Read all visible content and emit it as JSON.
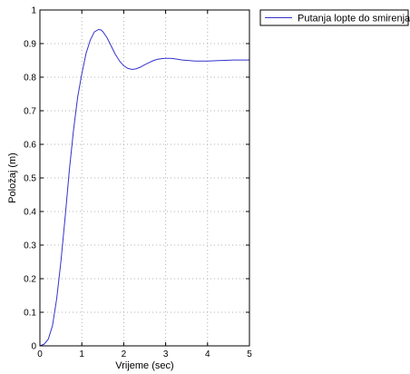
{
  "chart_data": {
    "type": "line",
    "title": "",
    "xlabel": "Vrijeme (sec)",
    "ylabel": "Položaj (m)",
    "xlim": [
      0,
      5
    ],
    "ylim": [
      0,
      1
    ],
    "xticks": [
      0,
      1,
      2,
      3,
      4,
      5
    ],
    "yticks": [
      0,
      0.1,
      0.2,
      0.3,
      0.4,
      0.5,
      0.6,
      0.7,
      0.8,
      0.9,
      1
    ],
    "xtick_labels": [
      "0",
      "1",
      "2",
      "3",
      "4",
      "5"
    ],
    "ytick_labels": [
      "0",
      "0.1",
      "0.2",
      "0.3",
      "0.4",
      "0.5",
      "0.6",
      "0.7",
      "0.8",
      "0.9",
      "1"
    ],
    "grid": true,
    "legend_position": "outside-top-right",
    "series": [
      {
        "name": "Putanja lopte do smirenja",
        "color": "#3333cc",
        "x": [
          0,
          0.1,
          0.2,
          0.3,
          0.4,
          0.5,
          0.6,
          0.7,
          0.8,
          0.9,
          1.0,
          1.1,
          1.2,
          1.3,
          1.4,
          1.45,
          1.5,
          1.6,
          1.7,
          1.8,
          1.9,
          2.0,
          2.1,
          2.2,
          2.3,
          2.4,
          2.5,
          2.6,
          2.7,
          2.8,
          2.9,
          3.0,
          3.1,
          3.2,
          3.3,
          3.4,
          3.5,
          3.6,
          3.7,
          3.8,
          3.9,
          4.0,
          4.2,
          4.4,
          4.6,
          4.8,
          5.0
        ],
        "y": [
          0,
          0.005,
          0.02,
          0.06,
          0.14,
          0.25,
          0.38,
          0.52,
          0.64,
          0.74,
          0.81,
          0.87,
          0.91,
          0.935,
          0.942,
          0.941,
          0.936,
          0.918,
          0.893,
          0.868,
          0.848,
          0.834,
          0.826,
          0.823,
          0.825,
          0.83,
          0.837,
          0.843,
          0.849,
          0.853,
          0.855,
          0.856,
          0.856,
          0.855,
          0.853,
          0.851,
          0.85,
          0.849,
          0.848,
          0.848,
          0.848,
          0.848,
          0.849,
          0.85,
          0.851,
          0.851,
          0.851
        ]
      }
    ]
  }
}
